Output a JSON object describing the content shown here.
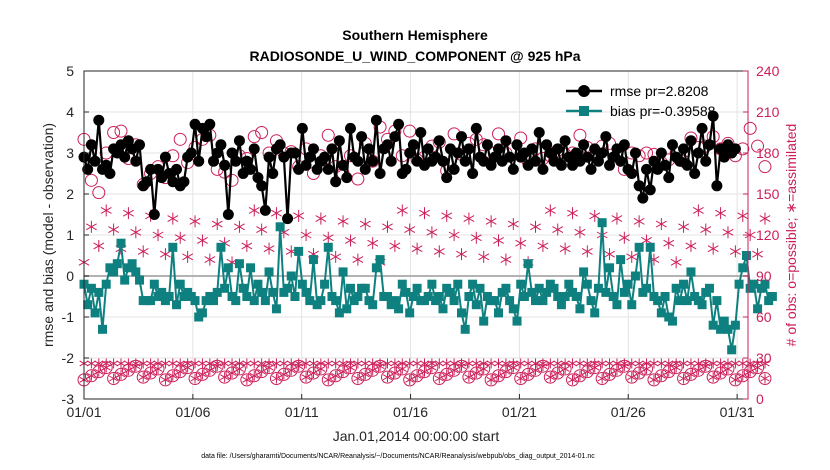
{
  "chart_data": {
    "type": "line",
    "title": "Southern Hemisphere",
    "subtitle": "RADIOSONDE_U_WIND_COMPONENT @ 925 hPa",
    "xlabel": "Jan.01,2014 00:00:00 start",
    "ylabel_left": "rmse and bias (model - observation)",
    "ylabel_right": "# of obs: o=possible; ∗=assimilated",
    "ylim_left": [
      -3,
      5
    ],
    "ylim_right": [
      0,
      240
    ],
    "xlim": [
      1,
      31.5
    ],
    "x_tick_labels": [
      "01/01",
      "01/06",
      "01/11",
      "01/16",
      "01/21",
      "01/26",
      "01/31"
    ],
    "x_tick_days": [
      1,
      6,
      11,
      16,
      21,
      26,
      31
    ],
    "y_left_ticks": [
      -3,
      -2,
      -1,
      0,
      1,
      2,
      3,
      4,
      5
    ],
    "y_right_ticks": [
      0,
      30,
      60,
      90,
      120,
      150,
      180,
      210,
      240
    ],
    "legend": [
      "rmse pr=2.8208",
      "bias pr=-0.39588"
    ],
    "footer": "data file: /Users/gharamti/Documents/NCAR/Reanalysis/~/Documents/NCAR/Reanalysis/webpub/obs_diag_output_2014-01.nc",
    "colors": {
      "rmse": "#000000",
      "bias": "#0f8080",
      "obs": "#cc1f5a",
      "zero": "#b3b3b3"
    },
    "rmse": [
      2.9,
      2.6,
      3.2,
      2.8,
      3.8,
      2.6,
      2.7,
      2.5,
      3.1,
      3.0,
      3.2,
      2.9,
      3.3,
      3.1,
      2.8,
      3.2,
      2.2,
      2.3,
      2.6,
      1.5,
      2.6,
      2.4,
      2.9,
      2.5,
      2.3,
      2.6,
      2.2,
      2.3,
      2.9,
      3.0,
      3.7,
      2.8,
      3.6,
      3.4,
      3.7,
      2.8,
      3.0,
      3.2,
      2.7,
      1.5,
      3.0,
      2.8,
      3.3,
      2.5,
      2.8,
      2.6,
      3.1,
      2.4,
      2.2,
      1.6,
      2.9,
      2.5,
      3.1,
      3.2,
      2.9,
      1.4,
      3.0,
      3.0,
      2.6,
      3.6,
      2.7,
      2.9,
      3.1,
      2.6,
      2.8,
      2.9,
      2.6,
      3.1,
      2.3,
      3.3,
      2.7,
      2.4,
      3.6,
      2.9,
      2.8,
      3.4,
      2.6,
      3.1,
      2.8,
      3.8,
      2.5,
      3.1,
      3.2,
      2.8,
      3.4,
      3.7,
      2.5,
      2.6,
      3.0,
      3.2,
      2.8,
      3.5,
      2.7,
      3.1,
      2.8,
      2.9,
      3.3,
      2.8,
      2.4,
      3.1,
      2.6,
      3.0,
      3.4,
      2.8,
      3.1,
      2.5,
      3.6,
      2.9,
      2.8,
      3.2,
      2.7,
      2.9,
      3.1,
      2.8,
      3.3,
      2.9,
      2.6,
      3.2,
      2.9,
      3.0,
      2.7,
      3.1,
      2.8,
      3.5,
      2.6,
      3.2,
      3.0,
      2.8,
      3.1,
      2.7,
      3.3,
      2.9,
      2.7,
      3.0,
      2.8,
      3.2,
      2.9,
      2.6,
      3.1,
      2.8,
      3.0,
      3.4,
      2.7,
      2.9,
      3.1,
      2.8,
      3.2,
      2.6,
      2.5,
      3.0,
      2.2,
      1.9,
      2.6,
      2.1,
      2.8,
      2.6,
      3.0,
      2.7,
      2.4,
      3.2,
      2.9,
      2.8,
      3.1,
      2.7,
      3.3,
      2.5,
      3.0,
      3.6,
      2.8,
      3.2,
      3.9,
      2.2,
      3.1,
      2.9,
      3.2,
      3.0,
      3.1
    ],
    "bias": [
      -0.2,
      -0.7,
      -0.3,
      -0.9,
      -0.4,
      -1.3,
      -0.2,
      0.2,
      0.1,
      0.3,
      0.8,
      -0.1,
      0.2,
      0.3,
      0.1,
      -0.1,
      -0.6,
      -0.6,
      -0.6,
      -0.2,
      -0.5,
      -0.4,
      -0.6,
      -0.5,
      0.7,
      -0.7,
      -0.2,
      -0.5,
      -0.4,
      -0.5,
      -0.6,
      -1.0,
      -0.9,
      -0.6,
      -0.5,
      -0.6,
      -0.4,
      0.7,
      -0.3,
      0.2,
      -0.5,
      -0.6,
      0.3,
      -0.3,
      -0.5,
      0.2,
      -0.6,
      -0.2,
      -0.4,
      -0.6,
      0.1,
      -0.4,
      -0.8,
      1.2,
      -0.4,
      -0.3,
      0.0,
      -0.5,
      0.6,
      -0.2,
      -0.4,
      -0.6,
      0.4,
      -0.7,
      -0.6,
      -0.2,
      0.7,
      -0.5,
      -0.6,
      -0.9,
      0.1,
      -0.8,
      -0.3,
      -0.6,
      -0.5,
      -0.3,
      -0.3,
      -0.6,
      -0.7,
      0.2,
      0.4,
      -0.5,
      -0.5,
      -0.7,
      -0.6,
      -0.8,
      -0.2,
      -0.4,
      -0.9,
      -0.5,
      -0.3,
      -0.6,
      -0.6,
      -0.5,
      -0.2,
      -0.6,
      -0.5,
      -0.8,
      -0.3,
      -0.4,
      -0.6,
      -0.2,
      -0.9,
      -1.3,
      -0.5,
      -0.2,
      -0.7,
      -0.3,
      -1.1,
      -0.5,
      -0.6,
      -0.6,
      -0.9,
      -0.4,
      -0.3,
      -0.6,
      -0.8,
      -1.1,
      -0.2,
      -0.5,
      0.3,
      -0.4,
      -0.6,
      -0.3,
      -0.6,
      -0.4,
      -0.2,
      -0.3,
      -0.5,
      -0.7,
      -0.5,
      -0.2,
      -0.4,
      -0.5,
      -0.8,
      0.1,
      -0.2,
      -0.6,
      -0.9,
      -0.3,
      1.3,
      -0.4,
      0.2,
      -0.5,
      -0.7,
      0.4,
      -0.4,
      -0.2,
      -0.7,
      0.0,
      0.7,
      -0.4,
      -0.3,
      0.7,
      -0.5,
      -0.6,
      -0.9,
      -0.5,
      -1.0,
      -1.1,
      -0.3,
      -0.6,
      -0.2,
      -0.6,
      0.1,
      -0.5,
      -0.6,
      -0.7,
      -0.4,
      -0.3,
      -1.2,
      -0.6,
      -1.3,
      -1.1,
      -1.3,
      -1.8,
      -1.2,
      -0.2,
      0.2,
      0.5,
      -0.3,
      -0.2,
      -0.8,
      -0.3,
      -0.2,
      -0.6,
      -0.5
    ],
    "obs_possible": [
      190,
      197,
      160,
      175,
      151,
      140,
      180,
      182,
      195,
      199,
      196,
      191,
      176,
      193,
      186,
      184,
      157,
      173,
      165,
      150,
      170,
      180,
      162,
      173,
      178,
      166,
      190,
      188,
      173,
      176,
      184,
      183,
      190,
      178,
      193,
      190,
      168,
      175,
      166,
      187,
      160,
      193,
      178,
      173,
      176,
      194,
      192,
      174,
      195,
      191,
      180,
      185,
      189,
      186,
      180,
      196,
      181,
      173,
      170,
      194,
      183,
      180,
      165,
      192,
      178,
      184,
      193,
      180,
      170,
      175,
      165,
      187,
      178,
      190,
      161,
      178,
      187,
      197,
      174,
      170,
      199,
      178,
      190,
      191,
      196,
      170,
      178,
      183,
      196,
      170,
      175,
      166,
      177,
      186,
      185,
      184,
      188,
      178,
      167,
      175,
      194,
      187,
      179,
      183,
      187,
      194,
      190,
      183,
      186,
      184,
      180,
      173,
      194,
      189,
      180,
      175,
      183,
      179,
      191,
      185,
      174,
      177,
      183,
      192,
      176,
      186,
      178,
      161,
      182,
      176,
      179,
      175,
      180,
      180,
      193,
      175,
      184,
      176,
      180,
      190,
      185,
      164,
      187,
      163,
      178,
      190,
      168,
      182,
      180,
      176,
      178,
      156,
      180,
      187,
      179,
      166,
      173,
      185,
      175,
      168,
      180,
      176,
      174,
      167,
      191,
      189,
      184,
      183,
      185,
      173,
      192,
      180,
      183,
      176,
      187,
      182,
      178,
      175,
      183,
      184,
      198,
      179,
      185,
      173,
      170
    ]
  }
}
